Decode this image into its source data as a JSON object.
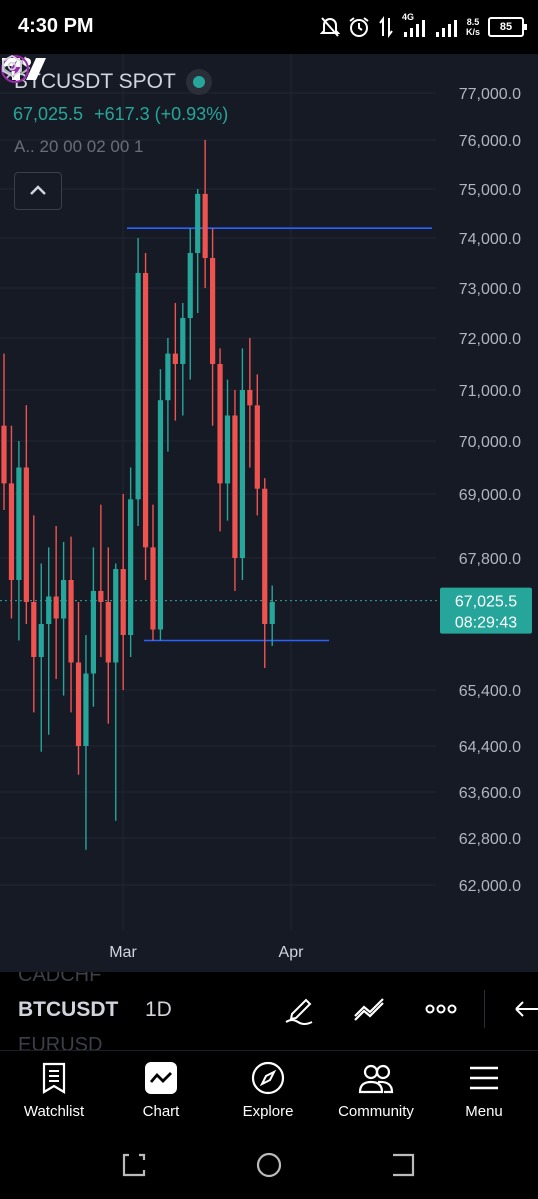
{
  "status_bar": {
    "time": "4:30 PM",
    "network": "4G",
    "speed_value": "8.5",
    "speed_unit": "K/s",
    "battery": "85",
    "icons": [
      "bell-off-icon",
      "alarm-icon",
      "data-arrows-icon",
      "signal-icon",
      "signal-icon",
      "battery-icon"
    ]
  },
  "chart_header": {
    "symbol": "BTCUSDT SPOT",
    "last_price": "67,025.5",
    "change": "+617.3 (+0.93%)",
    "indicator": "A.. 20 00 02 00 1"
  },
  "price_axis": {
    "ticks": [
      "77,000.0",
      "76,000.0",
      "75,000.0",
      "74,000.0",
      "73,000.0",
      "72,000.0",
      "71,000.0",
      "70,000.0",
      "69,000.0",
      "67,800.0",
      "65,400.0",
      "64,400.0",
      "63,600.0",
      "62,800.0",
      "62,000.0"
    ],
    "current_price_label": "67,025.5",
    "countdown": "08:29:43"
  },
  "time_axis": {
    "ticks": [
      "Mar",
      "Apr"
    ]
  },
  "colors": {
    "background": "#161a25",
    "up": "#26a69a",
    "down": "#ef5350",
    "drawing_line": "#2962ff",
    "grid": "#232632",
    "axis_text": "#b2b5be"
  },
  "chart_data": {
    "type": "candlestick",
    "title": "BTCUSDT SPOT",
    "interval": "1D",
    "ylim": [
      62000,
      77000
    ],
    "xlabel": "",
    "ylabel": "",
    "last_price": 67025.5,
    "horizontal_lines": [
      74200,
      66300
    ],
    "candles": [
      {
        "o": 70300,
        "h": 71700,
        "l": 68700,
        "c": 69200
      },
      {
        "o": 69200,
        "h": 70300,
        "l": 66700,
        "c": 67400
      },
      {
        "o": 67400,
        "h": 70000,
        "l": 66300,
        "c": 69500
      },
      {
        "o": 69500,
        "h": 70700,
        "l": 66600,
        "c": 67000
      },
      {
        "o": 67000,
        "h": 68600,
        "l": 65000,
        "c": 66000
      },
      {
        "o": 66000,
        "h": 67700,
        "l": 64300,
        "c": 66600
      },
      {
        "o": 66600,
        "h": 68000,
        "l": 64600,
        "c": 67100
      },
      {
        "o": 67100,
        "h": 68400,
        "l": 65600,
        "c": 66700
      },
      {
        "o": 66700,
        "h": 68100,
        "l": 65300,
        "c": 67400
      },
      {
        "o": 67400,
        "h": 68200,
        "l": 65000,
        "c": 65900
      },
      {
        "o": 65900,
        "h": 67000,
        "l": 63900,
        "c": 64400
      },
      {
        "o": 64400,
        "h": 66400,
        "l": 62600,
        "c": 65700
      },
      {
        "o": 65700,
        "h": 68000,
        "l": 65100,
        "c": 67200
      },
      {
        "o": 67200,
        "h": 68800,
        "l": 66000,
        "c": 67000
      },
      {
        "o": 67000,
        "h": 68000,
        "l": 64800,
        "c": 65900
      },
      {
        "o": 65900,
        "h": 67700,
        "l": 63100,
        "c": 67600
      },
      {
        "o": 67600,
        "h": 69000,
        "l": 65400,
        "c": 66400
      },
      {
        "o": 66400,
        "h": 69500,
        "l": 66000,
        "c": 68900
      },
      {
        "o": 68900,
        "h": 74000,
        "l": 68400,
        "c": 73300
      },
      {
        "o": 73300,
        "h": 73700,
        "l": 67400,
        "c": 68000
      },
      {
        "o": 68000,
        "h": 68800,
        "l": 66300,
        "c": 66500
      },
      {
        "o": 66500,
        "h": 71400,
        "l": 66300,
        "c": 70800
      },
      {
        "o": 70800,
        "h": 72000,
        "l": 69800,
        "c": 71700
      },
      {
        "o": 71700,
        "h": 72700,
        "l": 70400,
        "c": 71500
      },
      {
        "o": 71500,
        "h": 72700,
        "l": 70500,
        "c": 72400
      },
      {
        "o": 72400,
        "h": 74200,
        "l": 71200,
        "c": 73700
      },
      {
        "o": 73700,
        "h": 75000,
        "l": 72500,
        "c": 74900
      },
      {
        "o": 74900,
        "h": 76000,
        "l": 73000,
        "c": 73600
      },
      {
        "o": 73600,
        "h": 74200,
        "l": 70300,
        "c": 71500
      },
      {
        "o": 71500,
        "h": 71800,
        "l": 68300,
        "c": 69200
      },
      {
        "o": 69200,
        "h": 71200,
        "l": 68500,
        "c": 70500
      },
      {
        "o": 70500,
        "h": 71000,
        "l": 67200,
        "c": 67800
      },
      {
        "o": 67800,
        "h": 71800,
        "l": 67400,
        "c": 71000
      },
      {
        "o": 71000,
        "h": 72000,
        "l": 69500,
        "c": 70700
      },
      {
        "o": 70700,
        "h": 71300,
        "l": 68600,
        "c": 69100
      },
      {
        "o": 69100,
        "h": 69300,
        "l": 65800,
        "c": 66600
      },
      {
        "o": 66600,
        "h": 67300,
        "l": 66200,
        "c": 67000
      }
    ]
  },
  "toolbar": {
    "symbol": "BTCUSDT",
    "interval": "1D",
    "ghost_above": "CADCHF",
    "ghost_below": "EURUSD"
  },
  "bottom_nav": {
    "items": [
      {
        "label": "Watchlist",
        "icon": "watchlist-icon"
      },
      {
        "label": "Chart",
        "icon": "chart-icon"
      },
      {
        "label": "Explore",
        "icon": "compass-icon"
      },
      {
        "label": "Community",
        "icon": "community-icon"
      },
      {
        "label": "Menu",
        "icon": "menu-icon"
      }
    ]
  }
}
